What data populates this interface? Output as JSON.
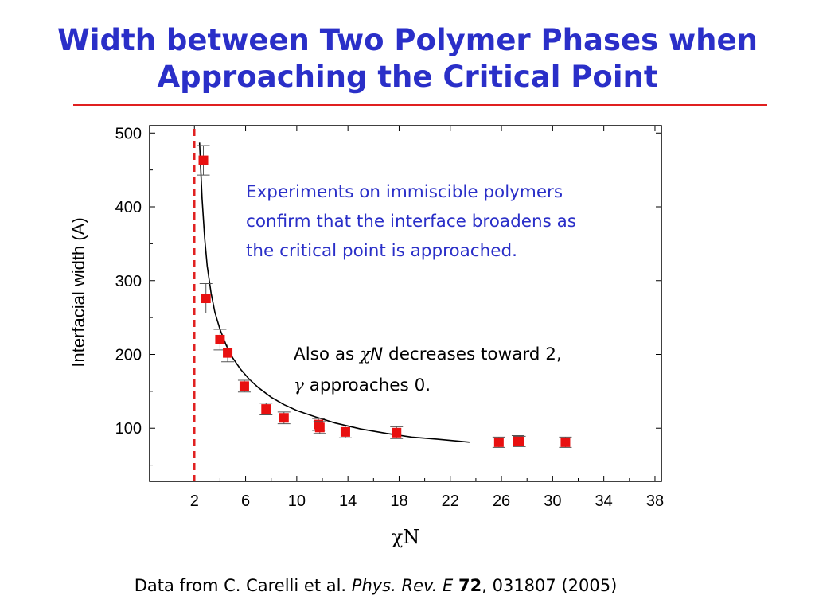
{
  "slide": {
    "title_line1": "Width between Two Polymer Phases when",
    "title_line2": "Approaching the Critical Point",
    "title_color": "#2a2fc8",
    "rule_color": "#e02020"
  },
  "citation": {
    "prefix": "Data from C. Carelli et al. ",
    "journal": "Phys. Rev. E",
    "space": " ",
    "volume": "72",
    "suffix": ", 031807 (2005)"
  },
  "chart_data": {
    "type": "scatter",
    "xlabel_symbol": "χ",
    "xlabel_letter": "N",
    "ylabel": "Interfacial width (A)",
    "xlim": [
      -1.5,
      38.5
    ],
    "ylim": [
      28,
      510
    ],
    "x_ticks": [
      2,
      6,
      10,
      14,
      18,
      22,
      26,
      30,
      34,
      38
    ],
    "y_ticks": [
      100,
      200,
      300,
      400,
      500
    ],
    "y_minor_ticks": [
      50,
      150,
      250,
      350,
      450
    ],
    "grid": false,
    "marker_color": "#e81010",
    "critical_line": {
      "x": 2.0,
      "color": "#e02020",
      "style": "dashed"
    },
    "points": [
      {
        "x": 2.7,
        "y": 463,
        "err": 20
      },
      {
        "x": 2.9,
        "y": 276,
        "err": 20
      },
      {
        "x": 4.0,
        "y": 220,
        "err": 14
      },
      {
        "x": 4.6,
        "y": 202,
        "err": 12
      },
      {
        "x": 5.9,
        "y": 157,
        "err": 8
      },
      {
        "x": 7.6,
        "y": 126,
        "err": 8
      },
      {
        "x": 9.0,
        "y": 114,
        "err": 8
      },
      {
        "x": 11.7,
        "y": 105,
        "err": 8
      },
      {
        "x": 11.8,
        "y": 101,
        "err": 8
      },
      {
        "x": 13.8,
        "y": 95,
        "err": 8
      },
      {
        "x": 17.8,
        "y": 94,
        "err": 8
      },
      {
        "x": 25.8,
        "y": 81,
        "err": 7
      },
      {
        "x": 27.3,
        "y": 83,
        "err": 7
      },
      {
        "x": 27.4,
        "y": 82,
        "err": 7
      },
      {
        "x": 31.0,
        "y": 81,
        "err": 7
      }
    ],
    "fit_curve": {
      "x": [
        2.4,
        2.6,
        2.8,
        3.0,
        3.3,
        3.6,
        4.0,
        4.5,
        5.0,
        5.6,
        6.3,
        7.0,
        8.0,
        9.0,
        10.0,
        11.5,
        13.0,
        15.0,
        17.0,
        19.0,
        21.0,
        23.5
      ],
      "y": [
        487,
        411,
        358,
        320,
        283,
        257,
        234,
        212,
        195,
        180,
        166,
        155,
        142,
        132,
        124,
        115,
        107,
        99,
        93,
        88,
        85,
        81
      ]
    },
    "annotations": {
      "experiments_text": [
        "Experiments on immiscible polymers",
        "confirm that the interface broadens as",
        "the critical point is approached."
      ],
      "experiments_color": "#2a2fc8",
      "also_prefix": "Also as ",
      "chi": "χ",
      "n_letter": "N",
      "also_suffix": " decreases toward 2,",
      "gamma": "γ",
      "gamma_suffix": " approaches 0."
    }
  }
}
